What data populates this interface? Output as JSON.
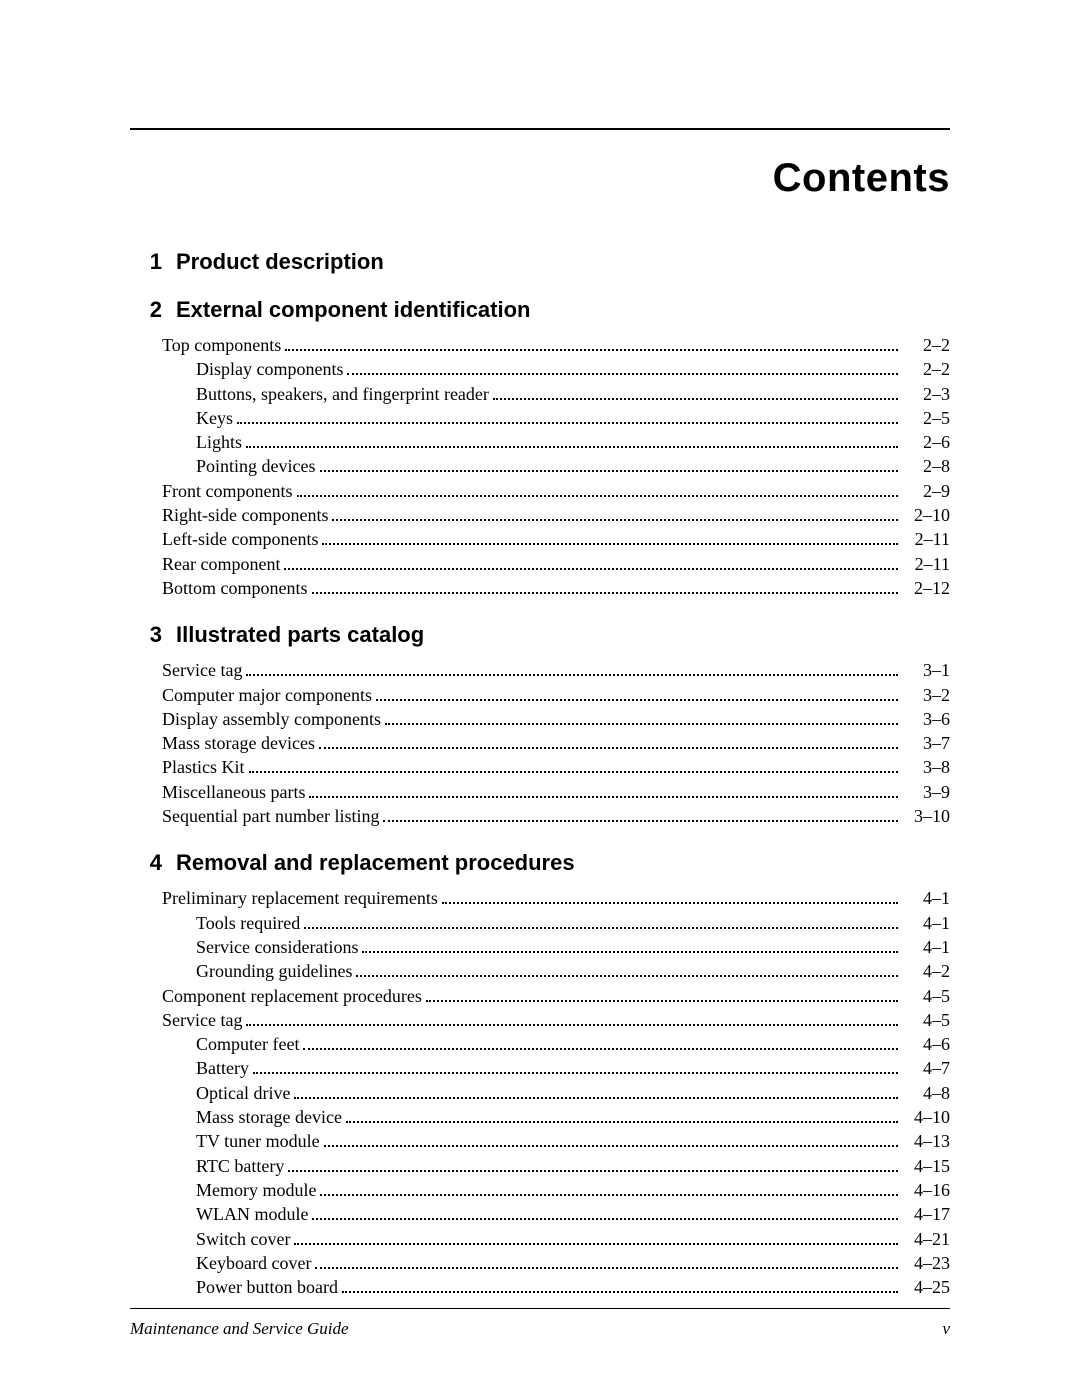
{
  "title": "Contents",
  "footer": {
    "left": "Maintenance and Service Guide",
    "right": "v"
  },
  "chapters": [
    {
      "num": "1",
      "label": "Product description",
      "entries": []
    },
    {
      "num": "2",
      "label": "External component identification",
      "entries": [
        {
          "level": 0,
          "text": "Top components",
          "page": "2–2"
        },
        {
          "level": 1,
          "text": "Display components",
          "page": "2–2"
        },
        {
          "level": 1,
          "text": "Buttons, speakers, and fingerprint reader",
          "page": "2–3"
        },
        {
          "level": 1,
          "text": "Keys",
          "page": "2–5"
        },
        {
          "level": 1,
          "text": "Lights",
          "page": "2–6"
        },
        {
          "level": 1,
          "text": "Pointing devices",
          "page": "2–8"
        },
        {
          "level": 0,
          "text": "Front components",
          "page": "2–9"
        },
        {
          "level": 0,
          "text": "Right-side components",
          "page": "2–10"
        },
        {
          "level": 0,
          "text": "Left-side components",
          "page": "2–11"
        },
        {
          "level": 0,
          "text": "Rear component",
          "page": "2–11"
        },
        {
          "level": 0,
          "text": "Bottom components",
          "page": "2–12"
        }
      ]
    },
    {
      "num": "3",
      "label": "Illustrated parts catalog",
      "entries": [
        {
          "level": 0,
          "text": "Service tag",
          "page": "3–1"
        },
        {
          "level": 0,
          "text": "Computer major components",
          "page": "3–2"
        },
        {
          "level": 0,
          "text": "Display assembly components",
          "page": "3–6"
        },
        {
          "level": 0,
          "text": "Mass storage devices",
          "page": "3–7"
        },
        {
          "level": 0,
          "text": "Plastics Kit",
          "page": "3–8"
        },
        {
          "level": 0,
          "text": "Miscellaneous parts",
          "page": "3–9"
        },
        {
          "level": 0,
          "text": "Sequential part number listing",
          "page": "3–10"
        }
      ]
    },
    {
      "num": "4",
      "label": "Removal and replacement procedures",
      "entries": [
        {
          "level": 0,
          "text": "Preliminary replacement requirements",
          "page": "4–1"
        },
        {
          "level": 1,
          "text": "Tools required",
          "page": "4–1"
        },
        {
          "level": 1,
          "text": "Service considerations",
          "page": "4–1"
        },
        {
          "level": 1,
          "text": "Grounding guidelines",
          "page": "4–2"
        },
        {
          "level": 0,
          "text": "Component replacement procedures",
          "page": "4–5"
        },
        {
          "level": 0,
          "text": "Service tag",
          "page": "4–5"
        },
        {
          "level": 1,
          "text": "Computer feet",
          "page": "4–6"
        },
        {
          "level": 1,
          "text": "Battery",
          "page": "4–7"
        },
        {
          "level": 1,
          "text": "Optical drive",
          "page": "4–8"
        },
        {
          "level": 1,
          "text": "Mass storage device",
          "page": "4–10"
        },
        {
          "level": 1,
          "text": "TV tuner module",
          "page": "4–13"
        },
        {
          "level": 1,
          "text": "RTC battery",
          "page": "4–15"
        },
        {
          "level": 1,
          "text": "Memory module",
          "page": "4–16"
        },
        {
          "level": 1,
          "text": "WLAN module",
          "page": "4–17"
        },
        {
          "level": 1,
          "text": "Switch cover",
          "page": "4–21"
        },
        {
          "level": 1,
          "text": "Keyboard cover",
          "page": "4–23"
        },
        {
          "level": 1,
          "text": "Power button board",
          "page": "4–25"
        }
      ]
    }
  ]
}
